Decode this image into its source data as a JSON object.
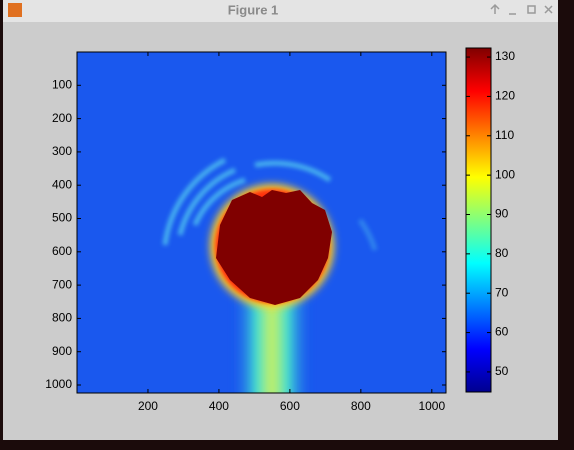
{
  "window": {
    "title": "Figure 1"
  },
  "chart_data": {
    "type": "heatmap",
    "xlim": [
      0,
      1040
    ],
    "xticks": [
      200,
      400,
      600,
      800,
      1000
    ],
    "ylim": [
      0,
      1024
    ],
    "yticks": [
      100,
      200,
      300,
      400,
      500,
      600,
      700,
      800,
      900,
      1000
    ],
    "colorbar": {
      "lim": [
        44.9,
        132.3
      ],
      "ticks": [
        50,
        60,
        70,
        80,
        90,
        100,
        110,
        120,
        130
      ]
    }
  }
}
